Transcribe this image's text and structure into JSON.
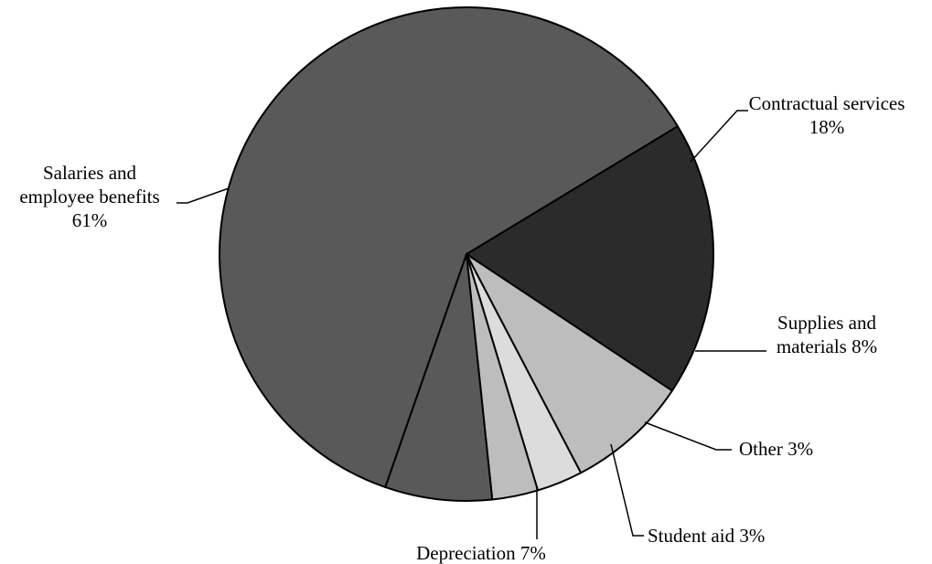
{
  "chart_data": {
    "type": "pie",
    "title": "",
    "start_angle_deg": 58.8,
    "direction": "clockwise",
    "slices": [
      {
        "name": "Contractual services",
        "value": 18,
        "color": "#2b2b2b",
        "label_lines": [
          "Contractual services",
          "18%"
        ]
      },
      {
        "name": "Supplies and materials",
        "value": 8,
        "color": "#bdbdbd",
        "label_lines": [
          "Supplies and",
          "materials 8%"
        ]
      },
      {
        "name": "Other",
        "value": 3,
        "color": "#dcdcdc",
        "label_lines": [
          "Other 3%"
        ]
      },
      {
        "name": "Student aid",
        "value": 3,
        "color": "#bdbdbd",
        "label_lines": [
          "Student aid 3%"
        ]
      },
      {
        "name": "Depreciation",
        "value": 7,
        "color": "#595959",
        "label_lines": [
          "Depreciation 7%"
        ]
      },
      {
        "name": "Salaries and employee benefits",
        "value": 61,
        "color": "#595959",
        "label_lines": [
          "Salaries and",
          "employee benefits",
          "61%"
        ]
      }
    ]
  }
}
